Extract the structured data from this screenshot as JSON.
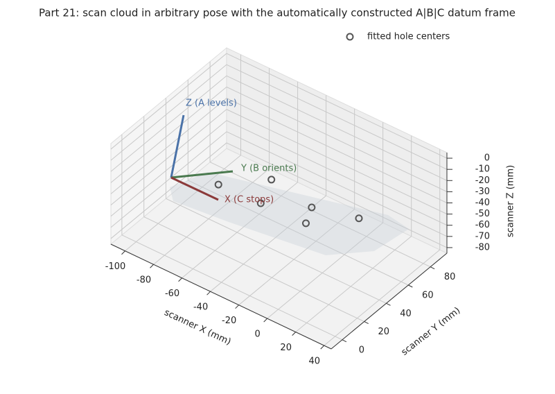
{
  "chart_data": {
    "type": "scatter3d",
    "title": "Part 21: scan cloud in arbitrary pose with the automatically constructed A|B|C datum frame",
    "x_label": "scanner X (mm)",
    "y_label": "scanner Y (mm)",
    "z_label": "scanner Z (mm)",
    "xlim": [
      -110,
      45
    ],
    "ylim": [
      -10,
      95
    ],
    "zlim": [
      -85,
      5
    ],
    "xticks": [
      -100,
      -80,
      -60,
      -40,
      -20,
      0,
      20,
      40
    ],
    "yticks": [
      0,
      20,
      40,
      60,
      80
    ],
    "zticks": [
      -80,
      -70,
      -60,
      -50,
      -40,
      -30,
      -20,
      -10,
      0
    ],
    "grid": true,
    "legend_position": "upper right",
    "series": [
      {
        "name": "fitted hole centers",
        "color": "#555555",
        "x": [
          -70,
          -49,
          -41,
          -16,
          -10,
          11
        ],
        "y": [
          36,
          57,
          37,
          51,
          38,
          59
        ],
        "z": [
          -45,
          -45,
          -45,
          -45,
          -45,
          -45
        ]
      }
    ],
    "annotations": [
      {
        "text": "Z (A levels)",
        "color": "#4a72a8"
      },
      {
        "text": "Y (B orients)",
        "color": "#4a7a4f"
      },
      {
        "text": "X (C stops)",
        "color": "#8b3a3a"
      }
    ]
  }
}
